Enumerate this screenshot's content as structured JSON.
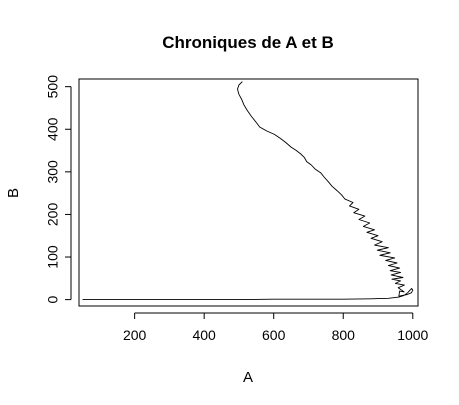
{
  "chart_data": {
    "type": "line",
    "title": "Chroniques de A et B",
    "xlabel": "A",
    "ylabel": "B",
    "xlim": [
      40,
      1015
    ],
    "ylim": [
      -15,
      518
    ],
    "xticks": [
      200,
      400,
      600,
      800,
      1000
    ],
    "yticks": [
      0,
      100,
      200,
      300,
      400,
      500
    ],
    "grid": false,
    "series": [
      {
        "name": "",
        "color": "#000000",
        "points": [
          [
            50,
            0
          ],
          [
            100,
            0
          ],
          [
            200,
            0
          ],
          [
            300,
            0
          ],
          [
            400,
            0
          ],
          [
            500,
            0
          ],
          [
            600,
            1
          ],
          [
            700,
            1
          ],
          [
            800,
            1
          ],
          [
            880,
            2
          ],
          [
            930,
            3
          ],
          [
            960,
            6
          ],
          [
            975,
            10
          ],
          [
            985,
            16
          ],
          [
            992,
            22
          ],
          [
            997,
            26
          ],
          [
            1000,
            22
          ],
          [
            996,
            16
          ],
          [
            984,
            12
          ],
          [
            960,
            8
          ],
          [
            962,
            20
          ],
          [
            975,
            18
          ],
          [
            958,
            28
          ],
          [
            976,
            34
          ],
          [
            950,
            38
          ],
          [
            965,
            44
          ],
          [
            940,
            48
          ],
          [
            972,
            52
          ],
          [
            938,
            58
          ],
          [
            965,
            64
          ],
          [
            935,
            68
          ],
          [
            962,
            74
          ],
          [
            930,
            80
          ],
          [
            955,
            86
          ],
          [
            922,
            92
          ],
          [
            948,
            98
          ],
          [
            905,
            104
          ],
          [
            935,
            110
          ],
          [
            898,
            116
          ],
          [
            930,
            122
          ],
          [
            890,
            128
          ],
          [
            912,
            136
          ],
          [
            880,
            144
          ],
          [
            900,
            150
          ],
          [
            868,
            158
          ],
          [
            890,
            164
          ],
          [
            858,
            172
          ],
          [
            876,
            180
          ],
          [
            845,
            188
          ],
          [
            862,
            196
          ],
          [
            830,
            204
          ],
          [
            845,
            212
          ],
          [
            818,
            220
          ],
          [
            828,
            228
          ],
          [
            805,
            236
          ],
          [
            795,
            246
          ],
          [
            782,
            256
          ],
          [
            768,
            266
          ],
          [
            758,
            276
          ],
          [
            745,
            288
          ],
          [
            735,
            298
          ],
          [
            720,
            306
          ],
          [
            708,
            316
          ],
          [
            695,
            324
          ],
          [
            688,
            334
          ],
          [
            678,
            342
          ],
          [
            665,
            350
          ],
          [
            650,
            358
          ],
          [
            636,
            368
          ],
          [
            620,
            378
          ],
          [
            602,
            388
          ],
          [
            580,
            396
          ],
          [
            560,
            405
          ],
          [
            548,
            418
          ],
          [
            536,
            430
          ],
          [
            524,
            444
          ],
          [
            514,
            458
          ],
          [
            508,
            470
          ],
          [
            500,
            482
          ],
          [
            496,
            494
          ],
          [
            500,
            504
          ],
          [
            510,
            512
          ]
        ]
      }
    ]
  }
}
